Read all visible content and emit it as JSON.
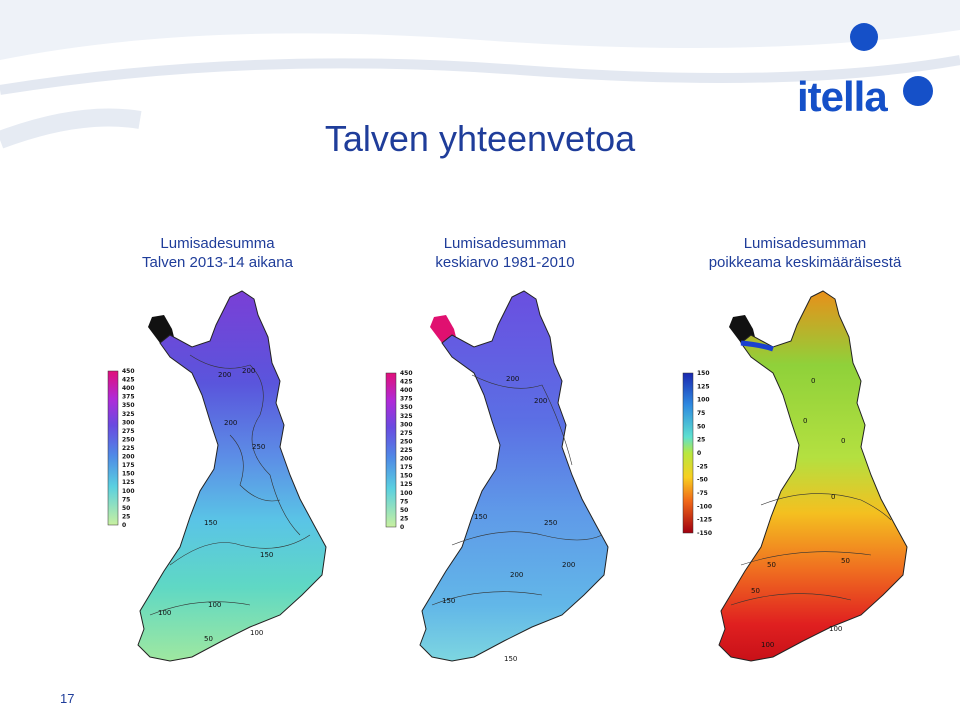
{
  "slide": {
    "title": "Talven yhteenvetoa",
    "page_number": "17",
    "logo_text": "itella",
    "brand_color": "#1550c8",
    "title_color": "#1f3d9a"
  },
  "maps": [
    {
      "caption_line1": "Lumisadesumma",
      "caption_line2": "Talven 2013-14 aikana",
      "legend": [
        "450",
        "425",
        "400",
        "375",
        "350",
        "325",
        "300",
        "275",
        "250",
        "225",
        "200",
        "175",
        "150",
        "125",
        "100",
        "75",
        "50",
        "25",
        "0"
      ],
      "contour_labels": [
        "200",
        "200",
        "250",
        "200",
        "150",
        "100",
        "100",
        "50",
        "100",
        "150"
      ]
    },
    {
      "caption_line1": "Lumisadesumman",
      "caption_line2": "keskiarvo 1981-2010",
      "legend": [
        "450",
        "425",
        "400",
        "375",
        "350",
        "325",
        "300",
        "275",
        "250",
        "225",
        "200",
        "175",
        "150",
        "125",
        "100",
        "75",
        "50",
        "25",
        "0"
      ],
      "contour_labels": [
        "200",
        "200",
        "250",
        "150",
        "200",
        "200",
        "150",
        "150"
      ]
    },
    {
      "caption_line1": "Lumisadesumman",
      "caption_line2": "poikkeama keskimääräisestä",
      "legend": [
        "150",
        "125",
        "100",
        "75",
        "50",
        "25",
        "0",
        "-25",
        "-50",
        "-75",
        "-100",
        "-125",
        "-150"
      ],
      "contour_labels": [
        "0",
        "0",
        "0",
        "0",
        "50",
        "50",
        "50",
        "100",
        "100"
      ]
    }
  ]
}
